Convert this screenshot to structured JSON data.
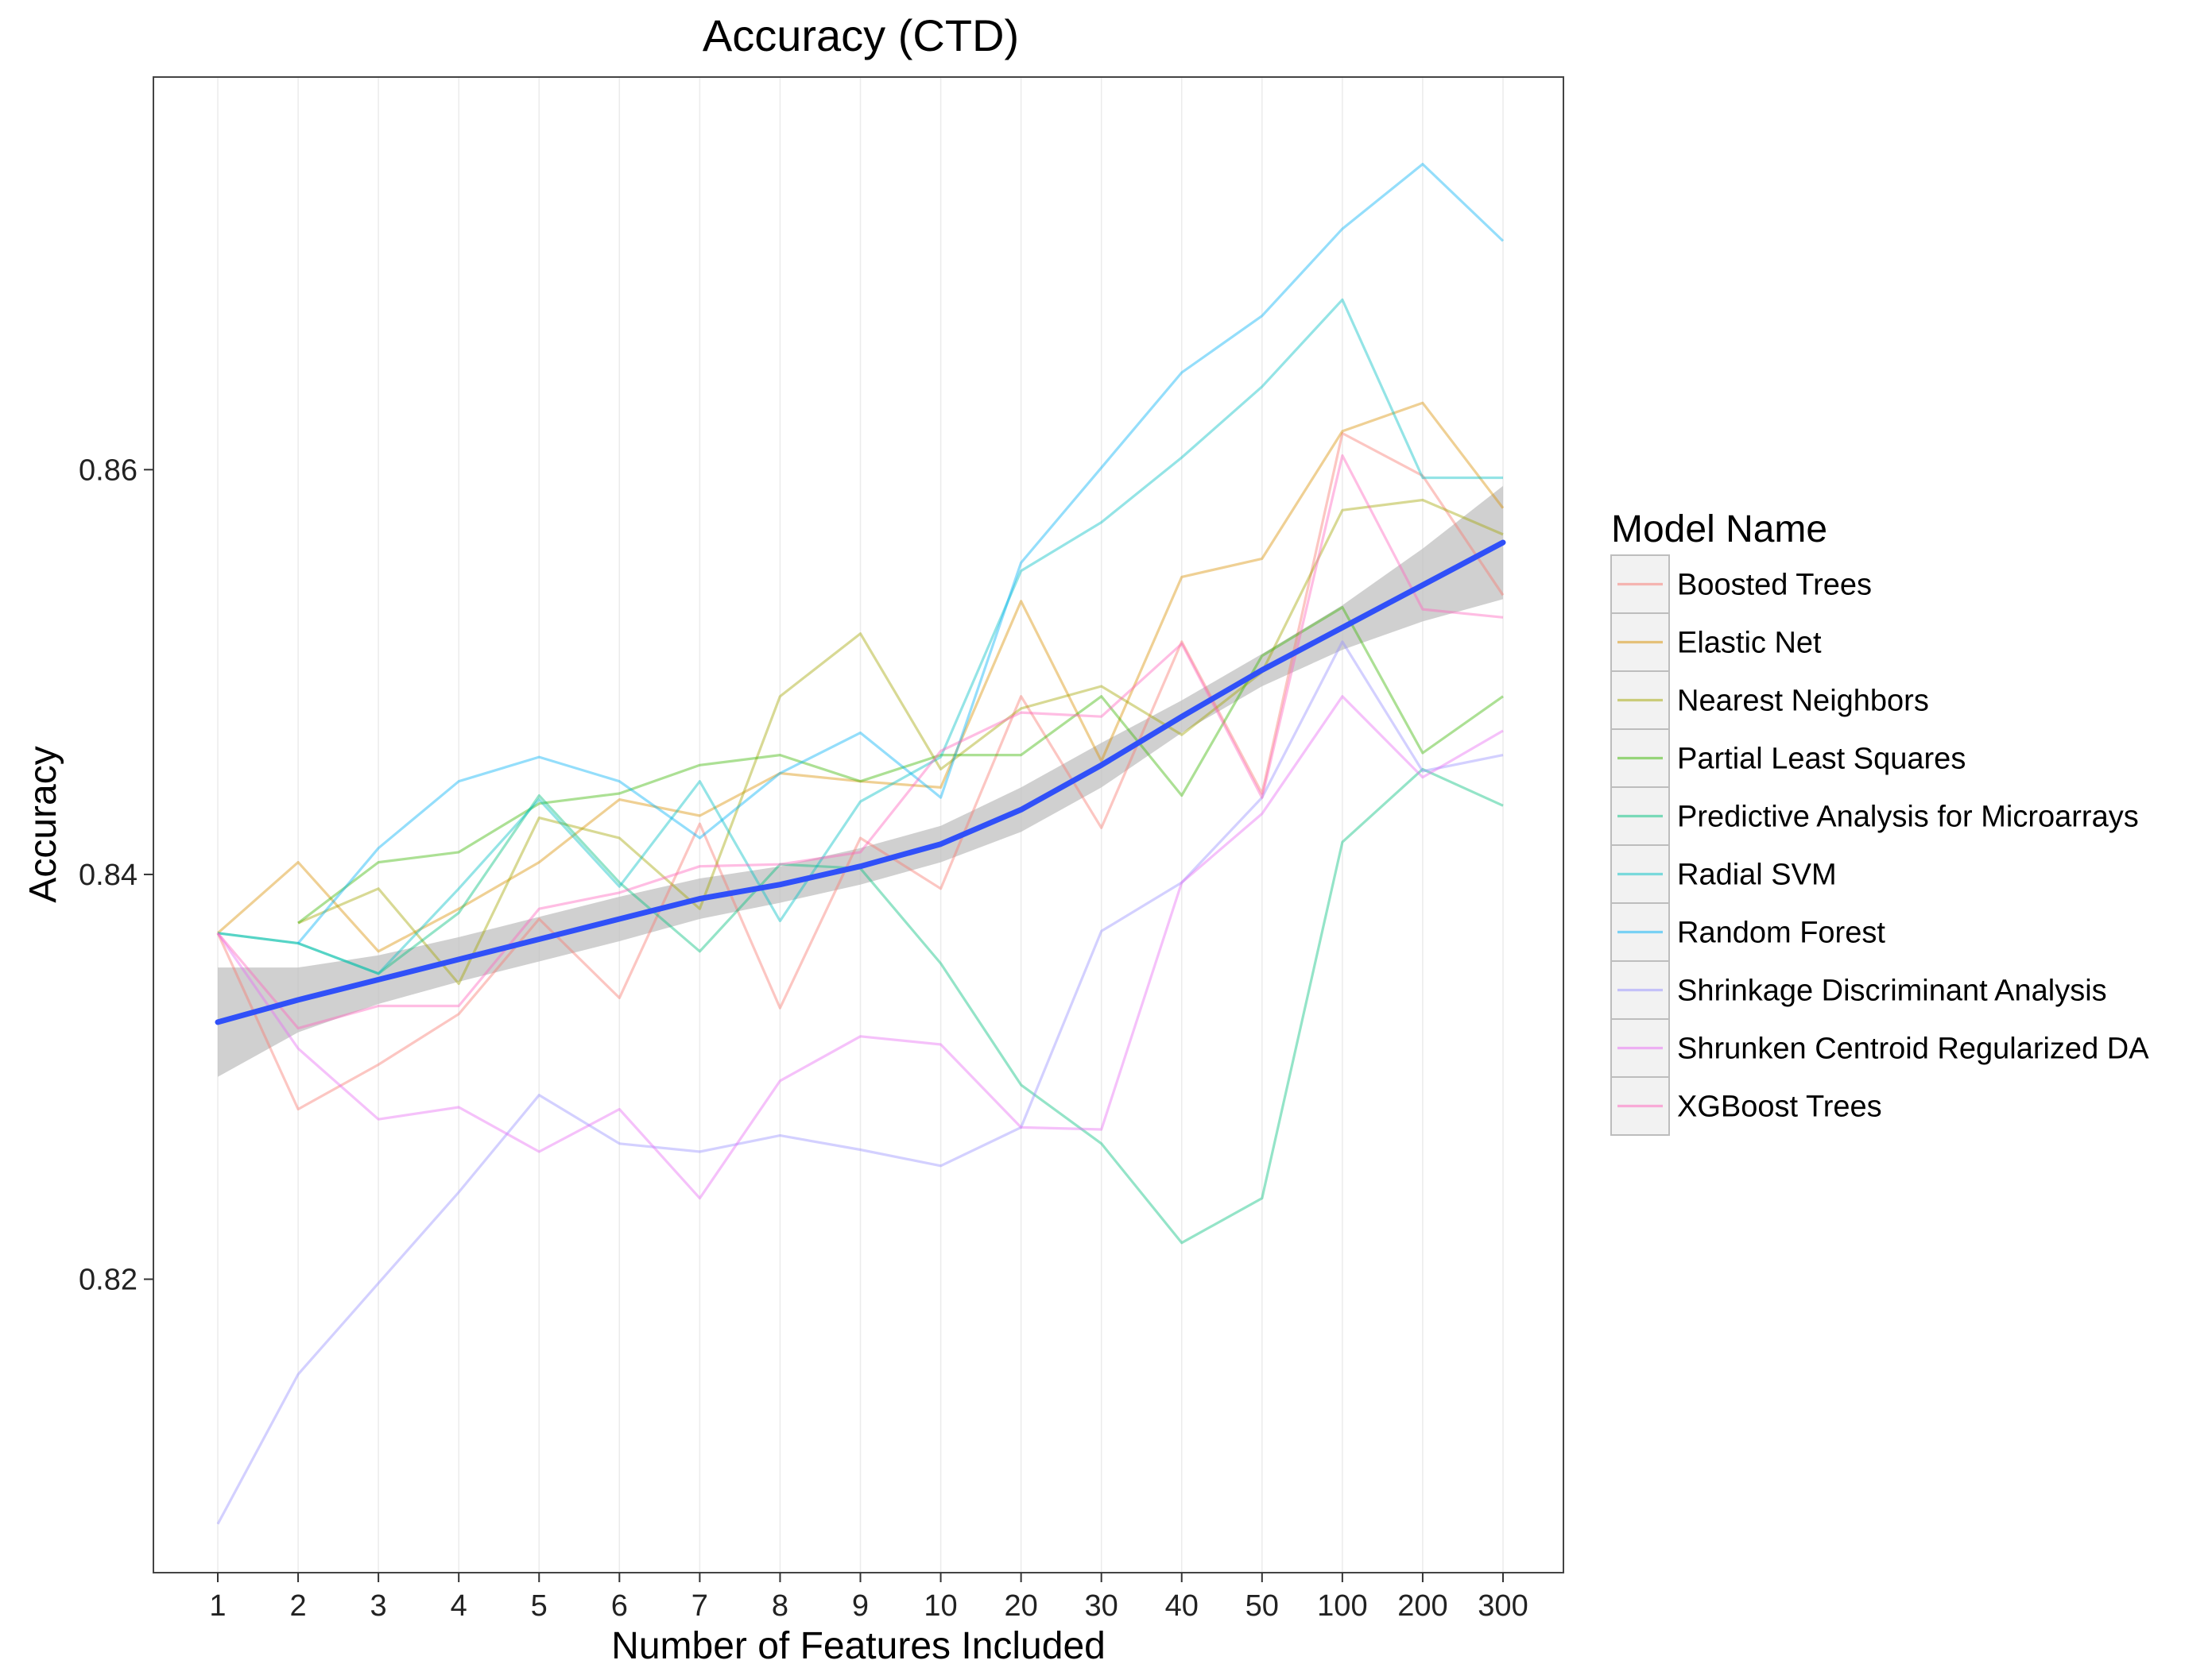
{
  "chart_data": {
    "type": "line",
    "title": "Accuracy (CTD)",
    "xlabel": "Number of Features Included",
    "ylabel": "Accuracy",
    "categories": [
      "1",
      "2",
      "3",
      "4",
      "5",
      "6",
      "7",
      "8",
      "9",
      "10",
      "20",
      "30",
      "40",
      "50",
      "100",
      "200",
      "300"
    ],
    "ylim": [
      0.8055,
      0.8794
    ],
    "yticks": [
      0.82,
      0.84,
      0.86
    ],
    "ytick_labels": [
      "0.82",
      "0.84",
      "0.86"
    ],
    "grid": true,
    "legend": {
      "title": "Model Name",
      "position": "right"
    },
    "series": [
      {
        "name": "Boosted Trees",
        "color": "#F8766D",
        "values": [
          0.8371,
          0.8284,
          0.8306,
          0.8331,
          0.8378,
          0.8339,
          0.8425,
          0.8334,
          0.8418,
          0.8393,
          0.8488,
          0.8423,
          0.8515,
          0.844,
          0.8618,
          0.8597,
          0.8538
        ]
      },
      {
        "name": "Elastic Net",
        "color": "#D89000",
        "values": [
          0.8371,
          0.8406,
          0.8362,
          0.8383,
          0.8406,
          0.8437,
          0.8429,
          0.845,
          0.8446,
          0.8443,
          0.8535,
          0.8456,
          0.8547,
          0.8556,
          0.8619,
          0.8633,
          0.8581
        ]
      },
      {
        "name": "Nearest Neighbors",
        "color": "#A3A500",
        "values": [
          null,
          0.8376,
          0.8393,
          0.8346,
          0.8428,
          0.8418,
          0.8383,
          0.8488,
          0.8519,
          0.8452,
          0.8482,
          0.8493,
          0.8469,
          0.85,
          0.858,
          0.8585,
          0.8568
        ]
      },
      {
        "name": "Partial Least Squares",
        "color": "#39B600",
        "values": [
          null,
          0.8376,
          0.8406,
          0.8411,
          0.8435,
          0.844,
          0.8454,
          0.8459,
          0.8446,
          0.8459,
          0.8459,
          0.8488,
          0.8439,
          0.8508,
          0.8532,
          0.846,
          0.8488
        ]
      },
      {
        "name": "Predictive Analysis for Microarrays",
        "color": "#00BF7D",
        "values": [
          0.8371,
          0.8366,
          0.8351,
          0.8381,
          0.8439,
          0.8396,
          0.8362,
          0.8405,
          0.8403,
          0.8356,
          0.8296,
          0.8267,
          0.8218,
          0.824,
          0.8416,
          0.8452,
          0.8434
        ]
      },
      {
        "name": "Radial SVM",
        "color": "#00BFC4",
        "values": [
          0.8371,
          0.8366,
          0.8351,
          0.8393,
          0.8437,
          0.8394,
          0.8446,
          0.8377,
          0.8436,
          0.8458,
          0.855,
          0.8574,
          0.8606,
          0.8641,
          0.8684,
          0.8596,
          0.8596
        ]
      },
      {
        "name": "Random Forest",
        "color": "#00B0F6",
        "values": [
          null,
          0.8366,
          0.8413,
          0.8446,
          0.8458,
          0.8446,
          0.8418,
          0.845,
          0.847,
          0.8438,
          0.8554,
          0.8601,
          0.8648,
          0.8676,
          0.8719,
          0.8751,
          0.8713
        ]
      },
      {
        "name": "Shrinkage Discriminant Analysis",
        "color": "#9590FF",
        "values": [
          0.8079,
          0.8153,
          0.8198,
          0.8243,
          0.8291,
          0.8267,
          0.8263,
          0.8271,
          0.8264,
          0.8256,
          0.8275,
          0.8372,
          0.8396,
          0.8438,
          0.8515,
          0.8451,
          0.8459
        ]
      },
      {
        "name": "Shrunken Centroid Regularized DA",
        "color": "#E76BF3",
        "values": [
          0.8371,
          0.8314,
          0.8279,
          0.8285,
          0.8263,
          0.8284,
          0.824,
          0.8298,
          0.832,
          0.8316,
          0.8275,
          0.8274,
          0.8396,
          0.843,
          0.8488,
          0.8448,
          0.8471
        ]
      },
      {
        "name": "XGBoost Trees",
        "color": "#FF62BC",
        "values": [
          0.8371,
          0.8324,
          0.8335,
          0.8335,
          0.8383,
          0.8391,
          0.8404,
          0.8405,
          0.8411,
          0.8461,
          0.848,
          0.8478,
          0.8514,
          0.8438,
          0.8607,
          0.8531,
          0.8527
        ]
      }
    ],
    "smooth": {
      "name": "trend",
      "color": "#3050F8",
      "band_color": "#BEBEBE",
      "values": [
        0.8327,
        0.8338,
        0.8348,
        0.8358,
        0.8368,
        0.8378,
        0.8388,
        0.8395,
        0.8404,
        0.8415,
        0.8432,
        0.8454,
        0.8478,
        0.8501,
        0.8522,
        0.8543,
        0.8564
      ],
      "lower": [
        0.83,
        0.8322,
        0.8336,
        0.8347,
        0.8357,
        0.8367,
        0.8378,
        0.8386,
        0.8395,
        0.8406,
        0.8421,
        0.8443,
        0.847,
        0.8493,
        0.8511,
        0.8525,
        0.8536
      ],
      "upper": [
        0.8354,
        0.8354,
        0.836,
        0.8369,
        0.8379,
        0.8389,
        0.8398,
        0.8404,
        0.8413,
        0.8424,
        0.8443,
        0.8465,
        0.8486,
        0.8509,
        0.8533,
        0.8561,
        0.8592
      ]
    }
  }
}
